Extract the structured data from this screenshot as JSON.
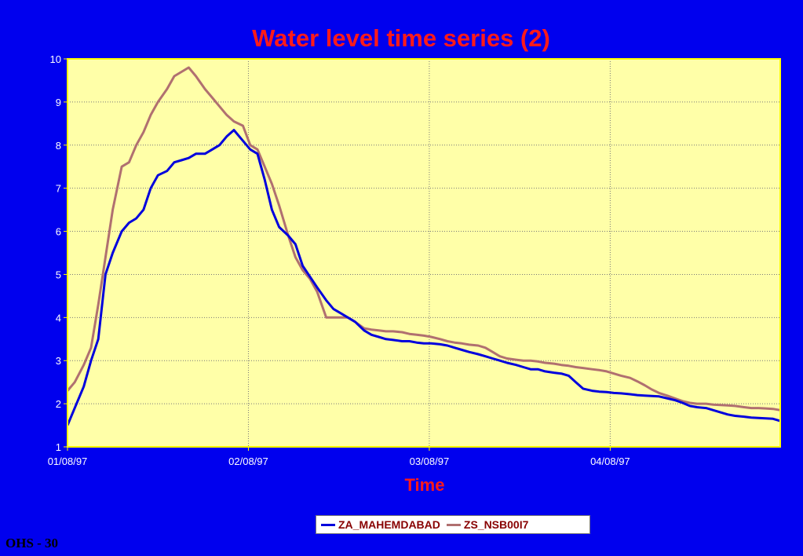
{
  "footer": {
    "label": "OHS - 30"
  },
  "colors": {
    "background": "#0000ee",
    "plot_area": "#ffffa8",
    "title": "#ff1a1a",
    "axis": "#ffff00",
    "grid": "#777777",
    "tick_text": "#ffffff",
    "legend_text": "#880000"
  },
  "chart_data": {
    "type": "line",
    "title": "Water level time series (2)",
    "xlabel": "Time",
    "ylabel": "",
    "xlim": [
      0,
      3.94
    ],
    "ylim": [
      1,
      10
    ],
    "x_ticks": [
      {
        "value": 0,
        "label": "01/08/97"
      },
      {
        "value": 1,
        "label": "02/08/97"
      },
      {
        "value": 2,
        "label": "03/08/97"
      },
      {
        "value": 3,
        "label": "04/08/97"
      }
    ],
    "y_ticks": [
      1,
      2,
      3,
      4,
      5,
      6,
      7,
      8,
      9,
      10
    ],
    "grid": true,
    "legend_position": "bottom",
    "series": [
      {
        "name": "ZA_MAHEMDABAD",
        "color": "#0000dd",
        "x": [
          0,
          0.04,
          0.09,
          0.13,
          0.17,
          0.21,
          0.25,
          0.3,
          0.34,
          0.38,
          0.42,
          0.46,
          0.5,
          0.55,
          0.59,
          0.63,
          0.67,
          0.71,
          0.76,
          0.8,
          0.84,
          0.88,
          0.92,
          0.97,
          1.01,
          1.05,
          1.09,
          1.13,
          1.17,
          1.22,
          1.26,
          1.3,
          1.34,
          1.38,
          1.43,
          1.47,
          1.51,
          1.55,
          1.59,
          1.64,
          1.68,
          1.72,
          1.76,
          1.8,
          1.85,
          1.89,
          1.93,
          1.97,
          2.01,
          2.06,
          2.1,
          2.14,
          2.18,
          2.22,
          2.27,
          2.31,
          2.35,
          2.39,
          2.43,
          2.48,
          2.52,
          2.56,
          2.6,
          2.64,
          2.69,
          2.73,
          2.77,
          2.81,
          2.85,
          2.9,
          2.94,
          2.98,
          3.02,
          3.06,
          3.11,
          3.15,
          3.19,
          3.23,
          3.27,
          3.32,
          3.36,
          3.4,
          3.44,
          3.48,
          3.53,
          3.57,
          3.61,
          3.65,
          3.69,
          3.74,
          3.78,
          3.82,
          3.86,
          3.9,
          3.94
        ],
        "values": [
          1.5,
          1.9,
          2.4,
          3.0,
          3.5,
          5.0,
          5.5,
          6.0,
          6.2,
          6.3,
          6.5,
          7.0,
          7.3,
          7.4,
          7.6,
          7.65,
          7.7,
          7.8,
          7.8,
          7.9,
          8.0,
          8.2,
          8.35,
          8.1,
          7.9,
          7.8,
          7.2,
          6.5,
          6.1,
          5.9,
          5.7,
          5.2,
          4.95,
          4.7,
          4.4,
          4.2,
          4.1,
          4.0,
          3.9,
          3.7,
          3.6,
          3.55,
          3.5,
          3.48,
          3.45,
          3.45,
          3.42,
          3.4,
          3.4,
          3.38,
          3.35,
          3.3,
          3.25,
          3.2,
          3.15,
          3.1,
          3.05,
          3.0,
          2.95,
          2.9,
          2.85,
          2.8,
          2.8,
          2.75,
          2.72,
          2.7,
          2.65,
          2.5,
          2.35,
          2.3,
          2.28,
          2.27,
          2.25,
          2.24,
          2.22,
          2.2,
          2.19,
          2.18,
          2.17,
          2.12,
          2.08,
          2.02,
          1.95,
          1.92,
          1.9,
          1.85,
          1.8,
          1.75,
          1.72,
          1.7,
          1.68,
          1.67,
          1.66,
          1.65,
          1.6
        ]
      },
      {
        "name": "ZS_NSB00I7",
        "color": "#b07070",
        "x": [
          0,
          0.04,
          0.09,
          0.13,
          0.17,
          0.21,
          0.25,
          0.3,
          0.34,
          0.38,
          0.42,
          0.46,
          0.5,
          0.55,
          0.59,
          0.63,
          0.67,
          0.71,
          0.76,
          0.8,
          0.84,
          0.88,
          0.92,
          0.97,
          1.01,
          1.05,
          1.09,
          1.13,
          1.17,
          1.22,
          1.26,
          1.3,
          1.34,
          1.38,
          1.43,
          1.47,
          1.51,
          1.55,
          1.59,
          1.64,
          1.68,
          1.72,
          1.76,
          1.8,
          1.85,
          1.89,
          1.93,
          1.97,
          2.01,
          2.06,
          2.1,
          2.14,
          2.18,
          2.22,
          2.27,
          2.31,
          2.35,
          2.39,
          2.43,
          2.48,
          2.52,
          2.56,
          2.6,
          2.64,
          2.69,
          2.73,
          2.77,
          2.81,
          2.85,
          2.9,
          2.94,
          2.98,
          3.02,
          3.06,
          3.11,
          3.15,
          3.19,
          3.23,
          3.27,
          3.32,
          3.36,
          3.4,
          3.44,
          3.48,
          3.53,
          3.57,
          3.61,
          3.65,
          3.69,
          3.74,
          3.78,
          3.82,
          3.86,
          3.9,
          3.94
        ],
        "values": [
          2.3,
          2.5,
          2.9,
          3.3,
          4.3,
          5.4,
          6.5,
          7.5,
          7.6,
          8.0,
          8.3,
          8.7,
          9.0,
          9.3,
          9.6,
          9.7,
          9.8,
          9.6,
          9.3,
          9.1,
          8.9,
          8.7,
          8.55,
          8.45,
          8.0,
          7.9,
          7.5,
          7.1,
          6.6,
          5.9,
          5.4,
          5.1,
          4.9,
          4.6,
          4.0,
          4.0,
          4.0,
          4.0,
          3.9,
          3.75,
          3.72,
          3.7,
          3.68,
          3.68,
          3.66,
          3.62,
          3.6,
          3.58,
          3.55,
          3.5,
          3.45,
          3.42,
          3.4,
          3.37,
          3.35,
          3.3,
          3.2,
          3.1,
          3.05,
          3.02,
          3.0,
          3.0,
          2.98,
          2.95,
          2.93,
          2.9,
          2.88,
          2.85,
          2.83,
          2.8,
          2.78,
          2.75,
          2.7,
          2.65,
          2.6,
          2.52,
          2.43,
          2.33,
          2.25,
          2.18,
          2.12,
          2.06,
          2.02,
          2.0,
          2.0,
          1.98,
          1.97,
          1.96,
          1.95,
          1.92,
          1.9,
          1.9,
          1.89,
          1.88,
          1.85
        ]
      }
    ]
  }
}
